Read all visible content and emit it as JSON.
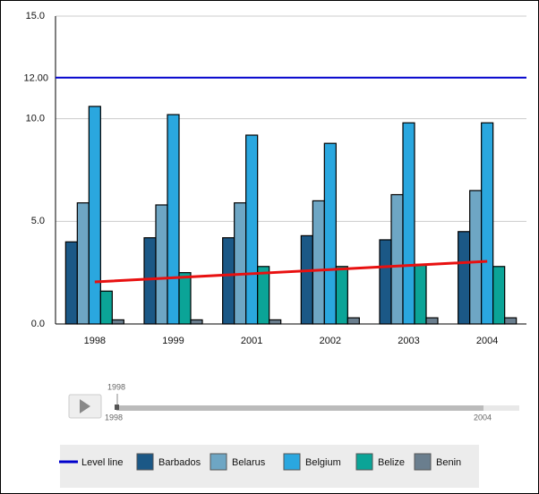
{
  "chart_data": {
    "type": "bar",
    "categories": [
      "1998",
      "1999",
      "2001",
      "2002",
      "2003",
      "2004"
    ],
    "series": [
      {
        "name": "Barbados",
        "color": "#1b5886",
        "values": [
          4.0,
          4.2,
          4.2,
          4.3,
          4.1,
          4.5
        ]
      },
      {
        "name": "Belarus",
        "color": "#6ea6c4",
        "values": [
          5.9,
          5.8,
          5.9,
          6.0,
          6.3,
          6.5
        ]
      },
      {
        "name": "Belgium",
        "color": "#2aa7df",
        "values": [
          10.6,
          10.2,
          9.2,
          8.8,
          9.8,
          9.8
        ]
      },
      {
        "name": "Belize",
        "color": "#0ba497",
        "values": [
          1.6,
          2.5,
          2.8,
          2.8,
          2.9,
          2.8
        ]
      },
      {
        "name": "Benin",
        "color": "#6a7e8e",
        "values": [
          0.2,
          0.2,
          0.2,
          0.3,
          0.3,
          0.3
        ]
      }
    ],
    "trend": {
      "color": "#e81010",
      "values": [
        2.05,
        2.25,
        2.45,
        2.65,
        2.85,
        3.05
      ]
    },
    "level_line": {
      "name": "Level line",
      "value": 12,
      "label": "12.00",
      "color": "#0000cc"
    },
    "ylim": [
      0,
      15
    ],
    "yticks": [
      {
        "value": 0,
        "label": "0.0"
      },
      {
        "value": 5,
        "label": "5.0"
      },
      {
        "value": 10,
        "label": "10.0"
      },
      {
        "value": 15,
        "label": "15.0"
      }
    ],
    "grid": true
  },
  "timeline": {
    "current": "1998",
    "start": "1998",
    "end": "2004"
  }
}
